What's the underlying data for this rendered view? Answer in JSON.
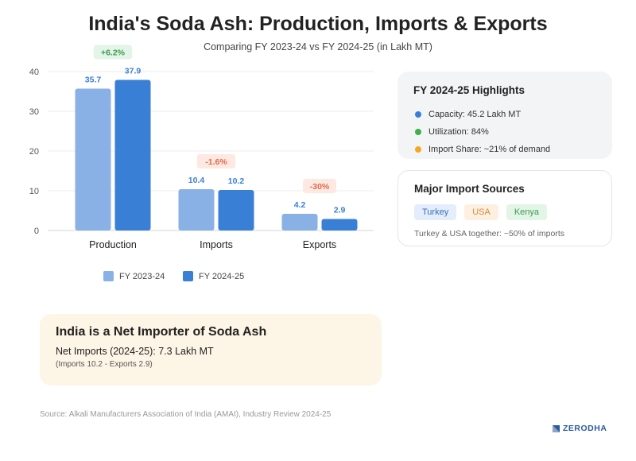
{
  "title": "India's Soda Ash: Production, Imports & Exports",
  "subtitle": "Comparing FY 2023-24 vs FY 2024-25 (in Lakh MT)",
  "chart_data": {
    "type": "bar",
    "categories": [
      "Production",
      "Imports",
      "Exports"
    ],
    "series": [
      {
        "name": "FY 2023-24",
        "color": "#8ab1e6",
        "values": [
          35.7,
          10.4,
          4.2
        ]
      },
      {
        "name": "FY 2024-25",
        "color": "#3a7fd6",
        "values": [
          37.9,
          10.2,
          2.9
        ]
      }
    ],
    "changes": [
      {
        "label": "+6.2%",
        "positive": true
      },
      {
        "label": "-1.6%",
        "positive": false
      },
      {
        "label": "-30%",
        "positive": false
      }
    ],
    "yticks": [
      0,
      10,
      20,
      30,
      40
    ],
    "ylim": [
      0,
      40
    ],
    "grid": true,
    "legend": "bottom-center"
  },
  "highlights": {
    "title": "FY 2024-25 Highlights",
    "items": [
      {
        "text": "Capacity: 45.2 Lakh MT",
        "color": "#3a7fd6"
      },
      {
        "text": "Utilization: 84%",
        "color": "#3cb04a"
      },
      {
        "text": "Import Share: ~21% of demand",
        "color": "#f5a623"
      }
    ]
  },
  "sources": {
    "title": "Major Import Sources",
    "tags": [
      {
        "label": "Turkey",
        "bg": "#e3edfb",
        "fg": "#3a6fb8"
      },
      {
        "label": "USA",
        "bg": "#fdf0e1",
        "fg": "#d98840"
      },
      {
        "label": "Kenya",
        "bg": "#e2f5e6",
        "fg": "#3f9a52"
      }
    ],
    "note": "Turkey & USA together: ~50% of imports"
  },
  "net": {
    "title": "India is a Net Importer of Soda Ash",
    "value": "Net Imports (2024-25): 7.3 Lakh MT",
    "note": "(Imports 10.2 - Exports 2.9)"
  },
  "source": "Source: Alkali Manufacturers Association of India (AMAI), Industry Review 2024-25",
  "brand": "ZERODHA"
}
